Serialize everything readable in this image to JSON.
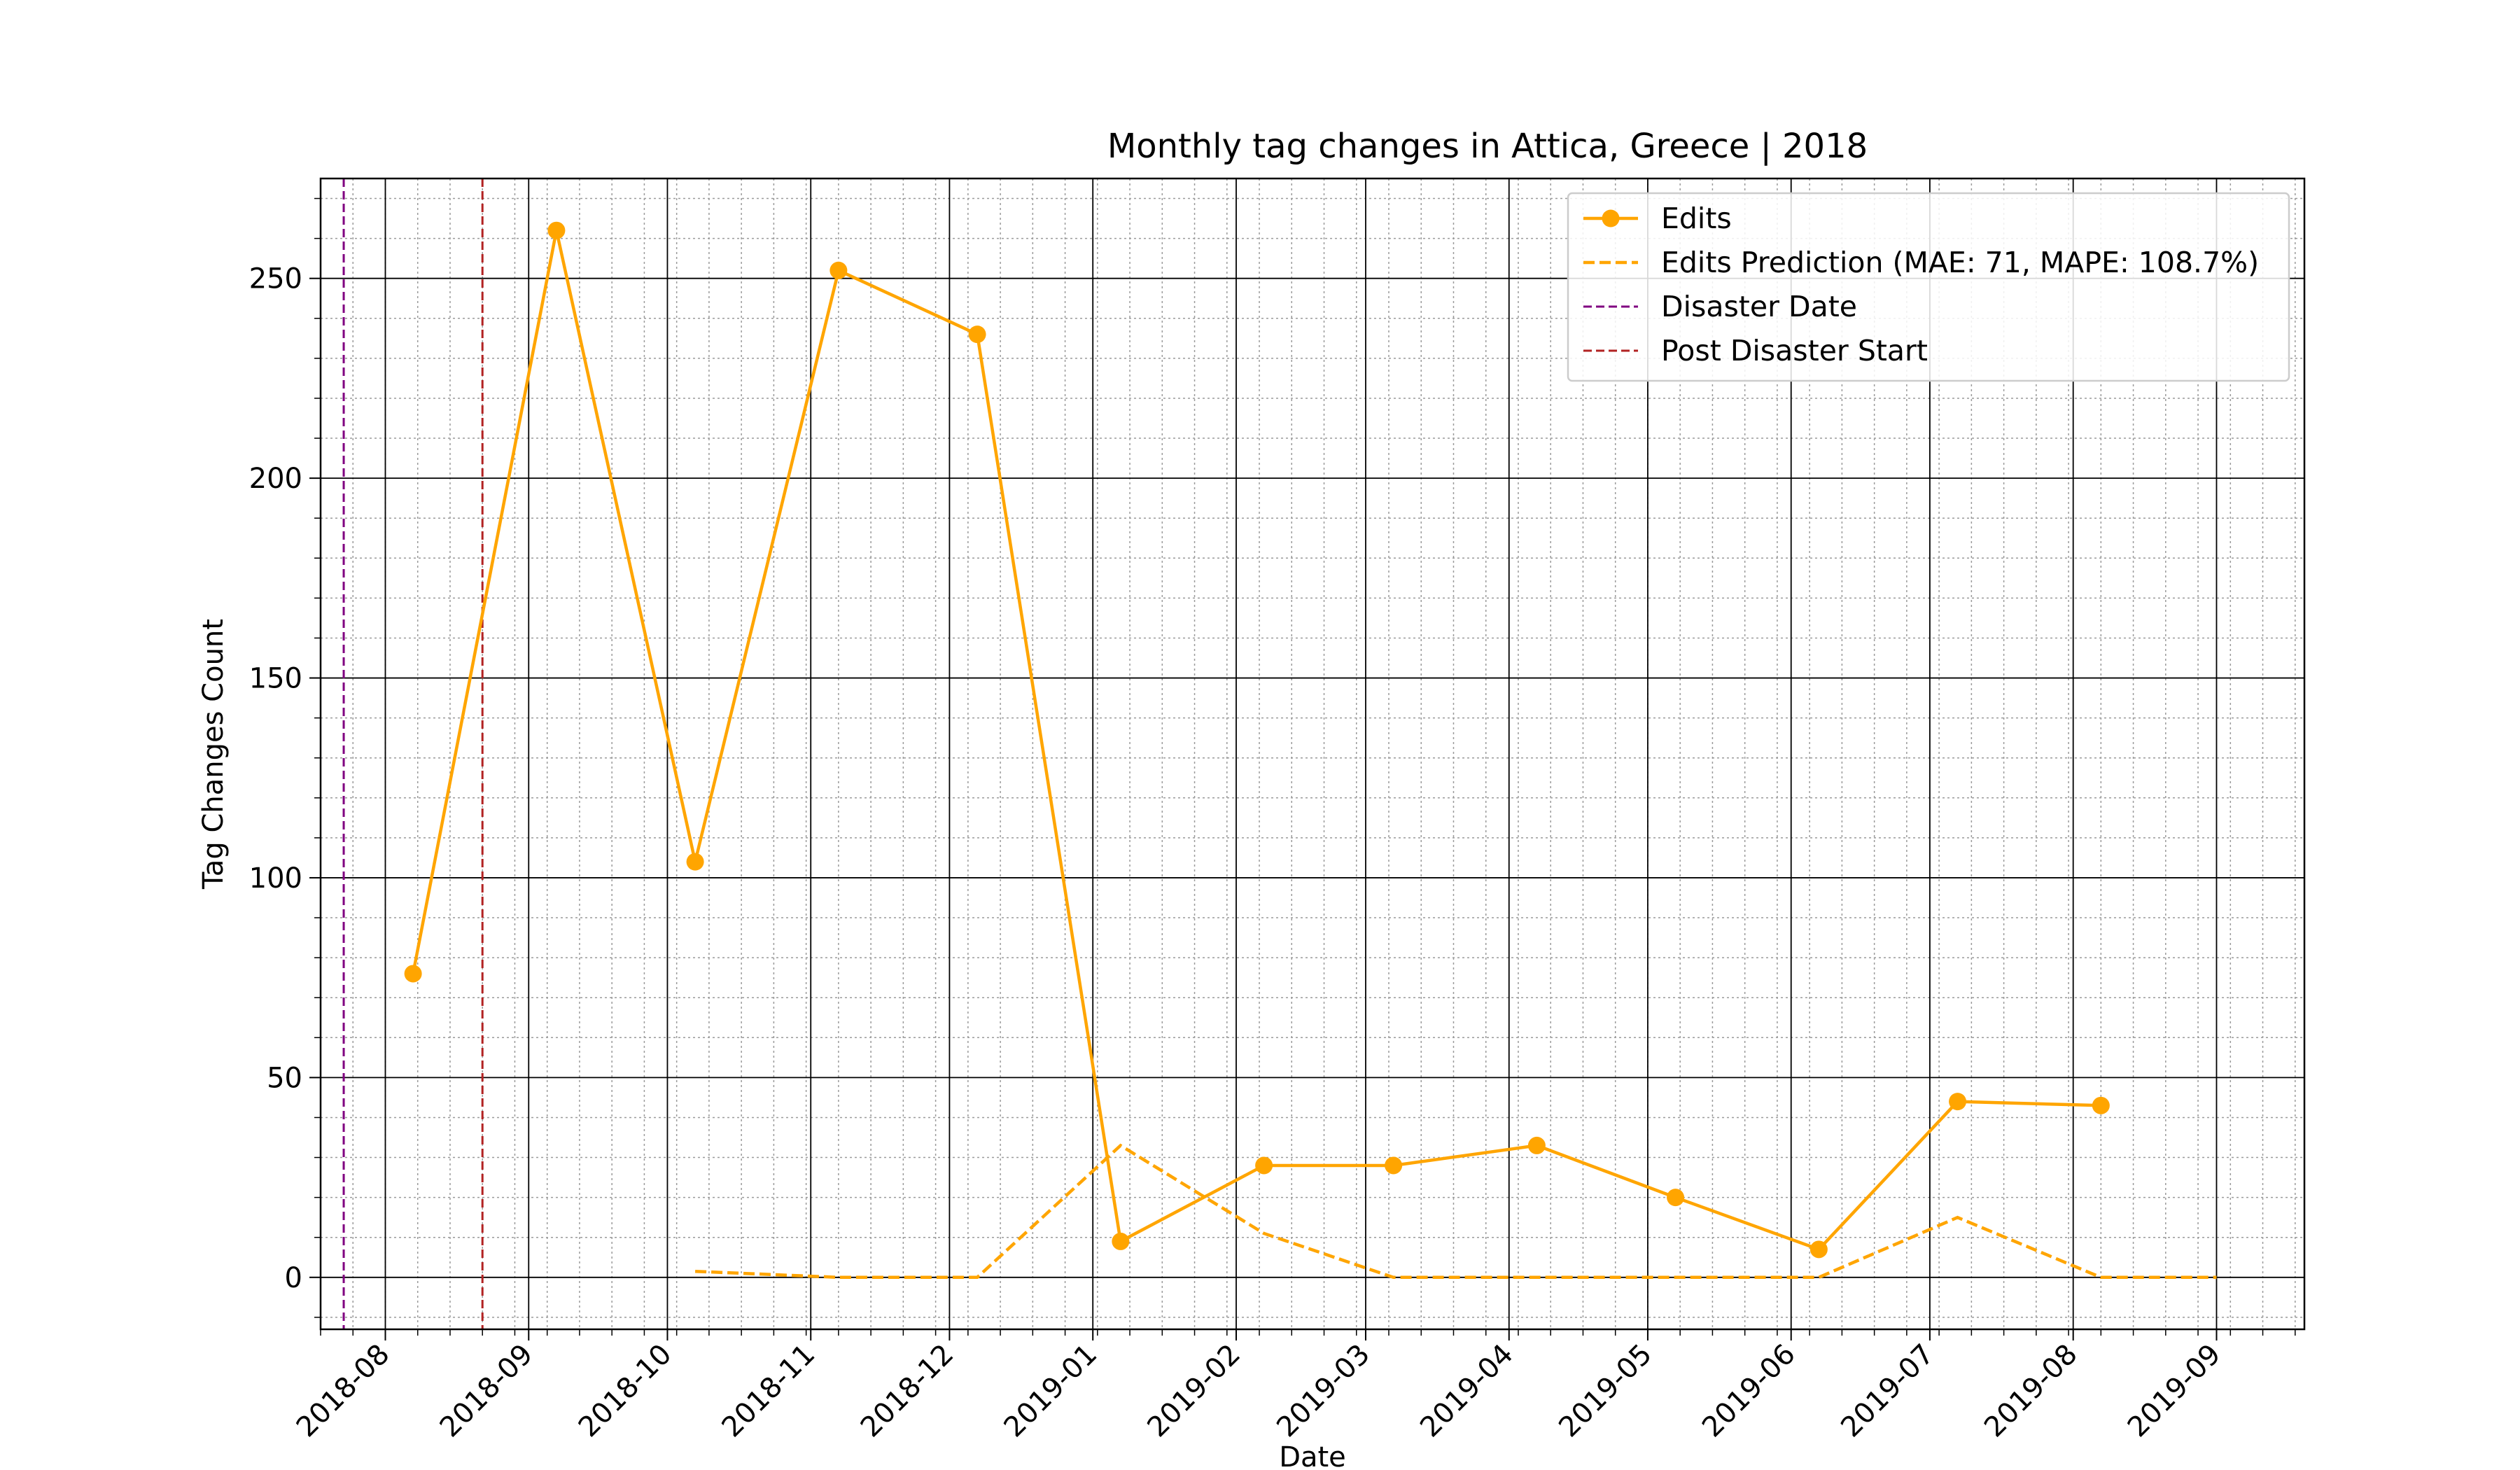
{
  "chart_data": {
    "type": "line",
    "title": "Monthly tag changes in Attica, Greece | 2018",
    "xlabel": "Date",
    "ylabel": "Tag Changes Count",
    "x_ticks": [
      "2018-08",
      "2018-09",
      "2018-10",
      "2018-11",
      "2018-12",
      "2019-01",
      "2019-02",
      "2019-03",
      "2019-04",
      "2019-05",
      "2019-06",
      "2019-07",
      "2019-08",
      "2019-09"
    ],
    "xlim": [
      "2018-07-18",
      "2019-09-20"
    ],
    "ylim": [
      -13,
      275
    ],
    "y_ticks": [
      0,
      50,
      100,
      150,
      200,
      250
    ],
    "grid": true,
    "legend_position": "top-right",
    "colors": {
      "edits": "#FFA500",
      "prediction": "#FFA500",
      "disaster": "#800080",
      "post_disaster": "#B22222",
      "major_grid": "#000000",
      "minor_grid": "#9a9a9a"
    },
    "series": [
      {
        "key": "edits",
        "name": "Edits",
        "style": "solid-markers",
        "x": [
          "2018-08-07",
          "2018-09-07",
          "2018-10-07",
          "2018-11-07",
          "2018-12-07",
          "2019-01-07",
          "2019-02-07",
          "2019-03-07",
          "2019-04-07",
          "2019-05-07",
          "2019-06-07",
          "2019-07-07",
          "2019-08-07"
        ],
        "y": [
          76,
          262,
          104,
          252,
          236,
          9,
          28,
          28,
          33,
          20,
          7,
          44,
          43
        ]
      },
      {
        "key": "prediction",
        "name": "Edits Prediction (MAE: 71, MAPE: 108.7%)",
        "style": "dashed",
        "x": [
          "2018-10-07",
          "2018-11-07",
          "2018-12-07",
          "2019-01-07",
          "2019-02-07",
          "2019-03-07",
          "2019-04-07",
          "2019-05-07",
          "2019-06-07",
          "2019-07-07",
          "2019-08-07",
          "2019-09-01"
        ],
        "y": [
          1.5,
          0,
          0,
          33,
          11,
          0,
          0,
          0,
          0,
          15,
          0,
          0
        ]
      }
    ],
    "vlines": [
      {
        "key": "disaster",
        "name": "Disaster Date",
        "x": "2018-07-23"
      },
      {
        "key": "post_disaster",
        "name": "Post Disaster Start",
        "x": "2018-08-22"
      }
    ]
  }
}
